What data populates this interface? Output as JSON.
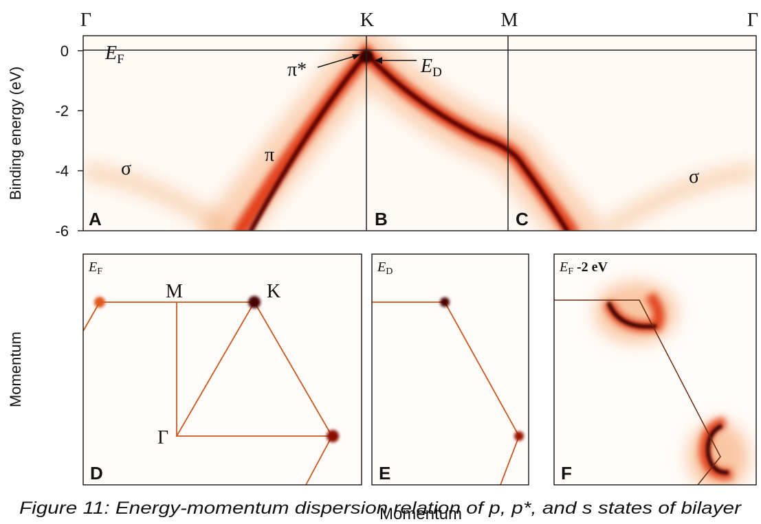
{
  "figure": {
    "top": {
      "y_label": "Binding energy (eV)",
      "ylim": [
        0.5,
        -6
      ],
      "yticks": [
        0,
        -2,
        -4,
        -6
      ],
      "k_points": [
        "Γ",
        "K",
        "M",
        "Γ"
      ],
      "ef": {
        "main": "E",
        "sub": "F"
      },
      "annotations": {
        "pi_star": "π*",
        "ed": {
          "main": "E",
          "sub": "D"
        },
        "pi": "π",
        "sigma_left": "σ",
        "sigma_right": "σ"
      },
      "panels": [
        "A",
        "B",
        "C"
      ]
    },
    "bottom": {
      "y_label": "Momentum",
      "x_label": "Momentum",
      "panels": [
        "D",
        "E",
        "F"
      ],
      "d_labels": {
        "energy": {
          "main": "E",
          "sub": "F"
        },
        "m": "M",
        "k": "K",
        "gamma": "Γ"
      },
      "e_label": {
        "main": "E",
        "sub": "D"
      },
      "f_label": {
        "main": "E",
        "sub": "F",
        "rest": " -2 eV"
      }
    },
    "caption": "Figure 11: Energy-momentum dispersion relation of p, p*, and s states of bilayer"
  }
}
